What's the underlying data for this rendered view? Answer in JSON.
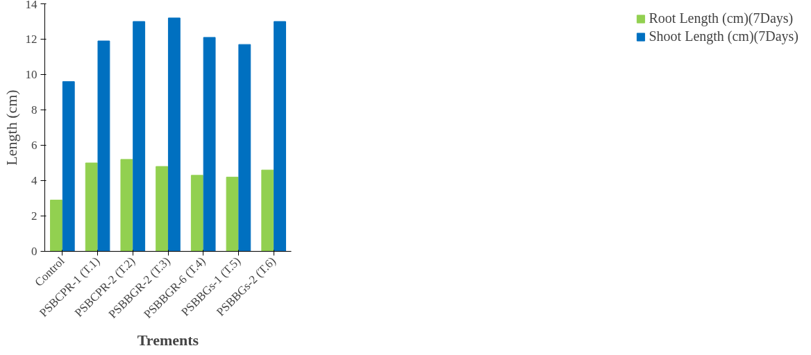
{
  "chart_data": {
    "type": "bar",
    "xlabel": "Trements",
    "ylabel": "Length (cm)",
    "categories": [
      "Control",
      "PSBCPR-1 (T.1)",
      "PSBCPR-2 (T.2)",
      "PSBBGR-2 (T.3)",
      "PSBBGR-6 (T.4)",
      "PSBBGs-1 (T.5)",
      "PSBBGs-2 (T.6)"
    ],
    "series": [
      {
        "name": "Root Length (cm)(7Days)",
        "color": "#92d050",
        "values": [
          2.9,
          5.0,
          5.2,
          4.8,
          4.3,
          4.2,
          4.6
        ]
      },
      {
        "name": "Shoot Length (cm)(7Days)",
        "color": "#0070c0",
        "values": [
          9.6,
          11.9,
          13.0,
          13.2,
          12.1,
          11.7,
          13.0
        ]
      }
    ],
    "ylim": [
      0,
      14
    ],
    "yticks": [
      0,
      2,
      4,
      6,
      8,
      10,
      12,
      14
    ],
    "grid": false,
    "legend": "right"
  }
}
